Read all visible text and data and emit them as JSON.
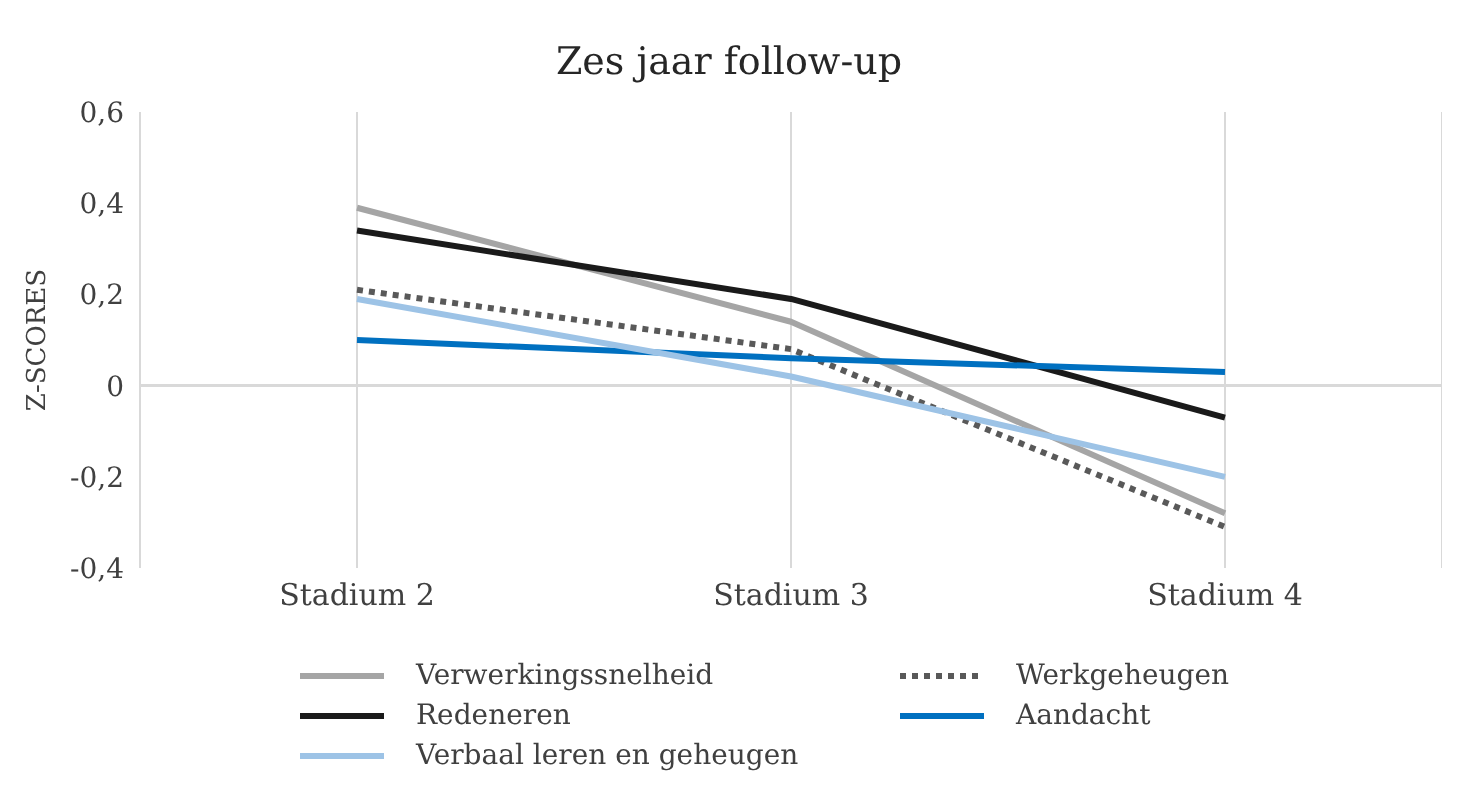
{
  "chart_data": {
    "type": "line",
    "title": "Zes jaar follow-up",
    "ylabel": "Z-SCORES",
    "categories": [
      "Stadium 2",
      "Stadium 3",
      "Stadium 4"
    ],
    "series": [
      {
        "name": "Verwerkingssnelheid",
        "color": "#a5a5a5",
        "line_style": "solid",
        "values": [
          0.39,
          0.14,
          -0.28
        ]
      },
      {
        "name": "Werkgeheugen",
        "color": "#595959",
        "line_style": "dotted",
        "values": [
          0.21,
          0.08,
          -0.31
        ]
      },
      {
        "name": "Redeneren",
        "color": "#1a1a1a",
        "line_style": "solid",
        "values": [
          0.34,
          0.19,
          -0.07
        ]
      },
      {
        "name": "Aandacht",
        "color": "#0070c0",
        "line_style": "solid",
        "values": [
          0.1,
          0.06,
          0.03
        ]
      },
      {
        "name": "Verbaal leren en geheugen",
        "color": "#9dc3e6",
        "line_style": "solid",
        "values": [
          0.19,
          0.02,
          -0.2
        ]
      }
    ],
    "ylim": [
      -0.4,
      0.6
    ],
    "yticks": [
      {
        "value": -0.4,
        "label": "-0,4"
      },
      {
        "value": -0.2,
        "label": "-0,2"
      },
      0,
      {
        "value": 0.2,
        "label": "0,2"
      },
      {
        "value": 0.4,
        "label": "0,4"
      },
      {
        "value": 0.6,
        "label": "0,6"
      }
    ],
    "ref_lines": [
      {
        "axis": "y",
        "value": 0,
        "color": "#d9d9d9"
      }
    ],
    "grid": "x",
    "legend": "bottom",
    "marker": "none"
  }
}
